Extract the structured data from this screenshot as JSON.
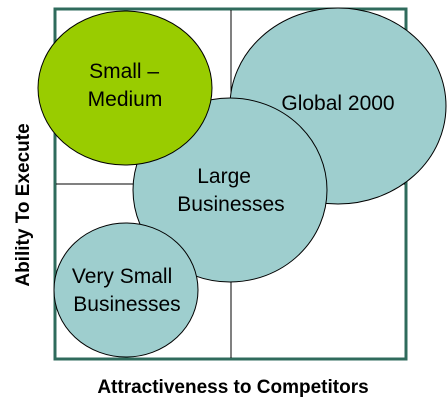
{
  "colors": {
    "frame": "#2f6b5c",
    "divider": "#000000",
    "bubble_teal": "#9ecece",
    "bubble_green": "#99cc00",
    "bubble_outline": "#000000",
    "background": "#ffffff"
  },
  "axes": {
    "x_label": "Attractiveness to Competitors",
    "y_label": "Ability To Execute"
  },
  "segments": [
    {
      "id": "global-2000",
      "lines": [
        "Global 2000"
      ],
      "color": "bubble_teal"
    },
    {
      "id": "large-businesses",
      "lines": [
        "Large",
        "Businesses"
      ],
      "color": "bubble_teal"
    },
    {
      "id": "very-small-businesses",
      "lines": [
        "Very Small",
        "Businesses"
      ],
      "color": "bubble_teal"
    },
    {
      "id": "small-medium",
      "lines": [
        "Small –",
        "Medium"
      ],
      "color": "bubble_green"
    }
  ]
}
